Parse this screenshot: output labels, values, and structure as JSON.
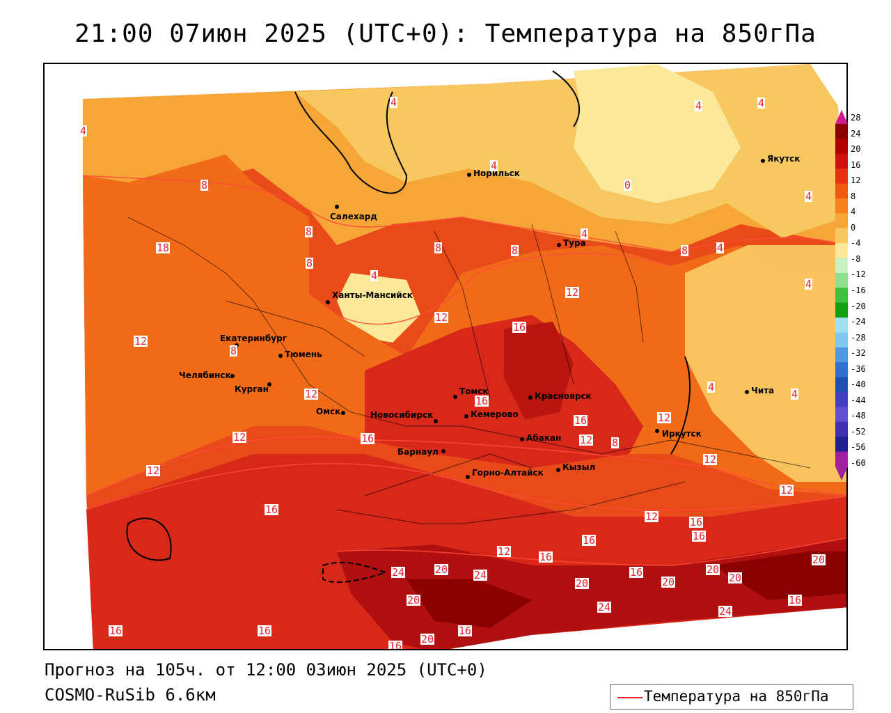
{
  "title": "21:00 07июн 2025 (UTC+0): Температура на 850гПа",
  "footer": {
    "forecast": "Прогноз на 105ч. от 12:00 03июн 2025 (UTC+0)",
    "model": "COSMO-RuSib 6.6км"
  },
  "legend": {
    "label": "Температура на 850гПа",
    "line_color": "#e8222a"
  },
  "colorbar": {
    "levels": [
      "28",
      "24",
      "20",
      "16",
      "12",
      "8",
      "4",
      "0",
      "-4",
      "-8",
      "-12",
      "-16",
      "-20",
      "-24",
      "-28",
      "-32",
      "-36",
      "-40",
      "-44",
      "-48",
      "-52",
      "-56",
      "-60"
    ],
    "colors": [
      "#8b0000",
      "#b00000",
      "#d01010",
      "#e83010",
      "#f05a10",
      "#f58020",
      "#f6a636",
      "#f8c860",
      "#fbe89a",
      "#c8f0c0",
      "#90e090",
      "#40c040",
      "#10a010",
      "#a0e0f0",
      "#80c8f0",
      "#5098e0",
      "#3070d0",
      "#2050b0",
      "#4040c0",
      "#6050d0",
      "#4030b0",
      "#202090",
      "#a020a0"
    ]
  },
  "cities": [
    {
      "name": "Норильск"
    },
    {
      "name": "Якутск"
    },
    {
      "name": "Салехард"
    },
    {
      "name": "Тура"
    },
    {
      "name": "Ханты-Мансийск"
    },
    {
      "name": "Екатеринбург"
    },
    {
      "name": "Тюмень"
    },
    {
      "name": "Челябинск"
    },
    {
      "name": "Курган"
    },
    {
      "name": "Омск"
    },
    {
      "name": "Новосибирск"
    },
    {
      "name": "Томск"
    },
    {
      "name": "Кемерово"
    },
    {
      "name": "Красноярск"
    },
    {
      "name": "Барнаул"
    },
    {
      "name": "Абакан"
    },
    {
      "name": "Иркутск"
    },
    {
      "name": "Чита"
    },
    {
      "name": "Горно-Алтайск"
    },
    {
      "name": "Кызыл"
    }
  ],
  "isolines": [
    "4",
    "4",
    "4",
    "4",
    "8",
    "4",
    "0",
    "4",
    "8",
    "18",
    "8",
    "8",
    "4",
    "8",
    "4",
    "8",
    "4",
    "12",
    "16",
    "12",
    "12",
    "8",
    "4",
    "4",
    "4",
    "16",
    "16",
    "12",
    "12",
    "12",
    "8",
    "12",
    "12",
    "16",
    "16",
    "12",
    "16",
    "16",
    "16",
    "12",
    "20",
    "24",
    "24",
    "20",
    "12",
    "16",
    "20",
    "20",
    "16",
    "24",
    "20",
    "20",
    "24",
    "16",
    "16",
    "16",
    "20",
    "16",
    "16",
    "20",
    "12"
  ]
}
